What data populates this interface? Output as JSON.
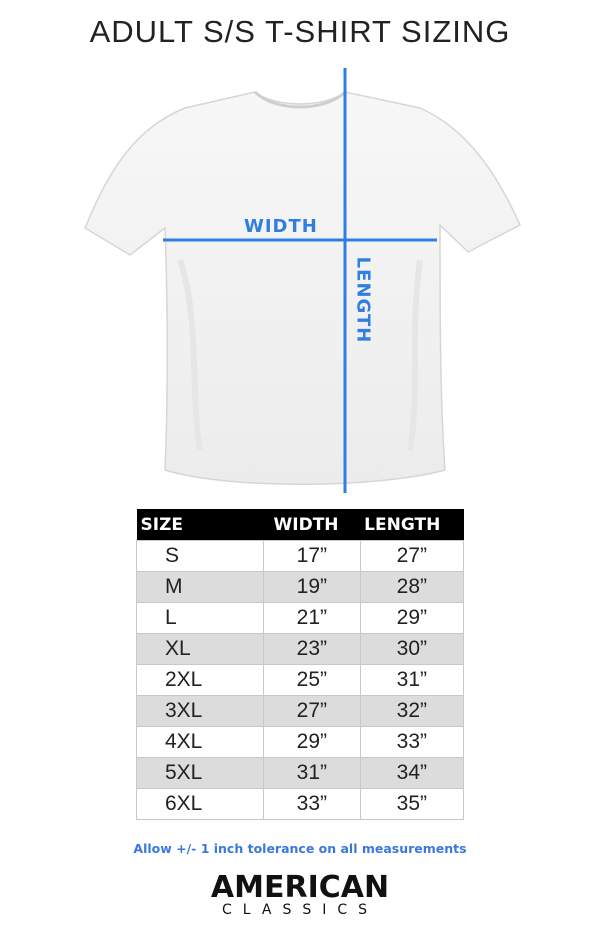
{
  "title": "ADULT S/S T-SHIRT SIZING",
  "diagram": {
    "width_label": "WIDTH",
    "length_label": "LENGTH",
    "line_color": "#2f7fe3"
  },
  "table": {
    "headers": [
      "SIZE",
      "WIDTH",
      "LENGTH"
    ],
    "rows": [
      [
        "S",
        "17”",
        "27”"
      ],
      [
        "M",
        "19”",
        "28”"
      ],
      [
        "L",
        "21”",
        "29”"
      ],
      [
        "XL",
        "23”",
        "30”"
      ],
      [
        "2XL",
        "25”",
        "31”"
      ],
      [
        "3XL",
        "27”",
        "32”"
      ],
      [
        "4XL",
        "29”",
        "33”"
      ],
      [
        "5XL",
        "31”",
        "34”"
      ],
      [
        "6XL",
        "33”",
        "35”"
      ]
    ]
  },
  "note": "Allow +/- 1 inch tolerance on all measurements",
  "logo": {
    "line1": "AMERICAN",
    "line2": "CLASSICS"
  }
}
